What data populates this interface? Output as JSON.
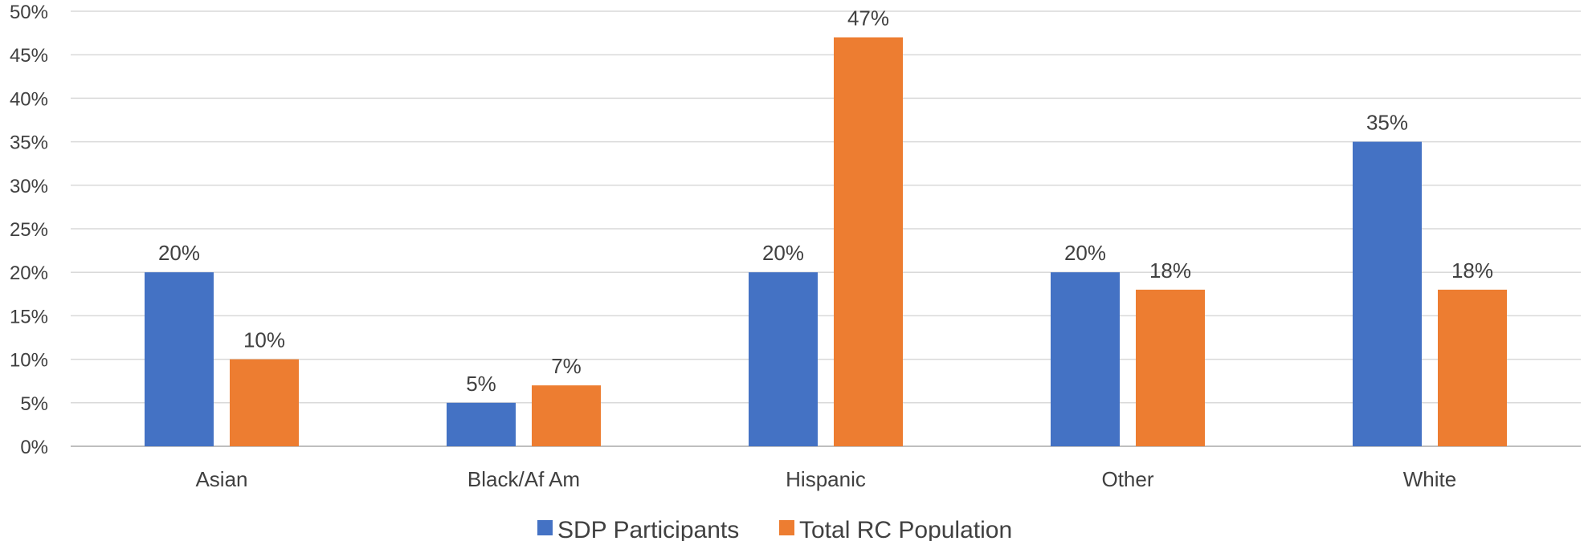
{
  "chart_data": {
    "type": "bar",
    "categories": [
      "Asian",
      "Black/Af Am",
      "Hispanic",
      "Other",
      "White"
    ],
    "series": [
      {
        "name": "SDP Participants",
        "color": "#4472C4",
        "values": [
          20,
          5,
          20,
          20,
          35
        ],
        "labels": [
          "20%",
          "5%",
          "20%",
          "20%",
          "35%"
        ]
      },
      {
        "name": "Total RC Population",
        "color": "#ED7D31",
        "values": [
          10,
          7,
          47,
          18,
          18
        ],
        "labels": [
          "10%",
          "7%",
          "47%",
          "18%",
          "18%"
        ]
      }
    ],
    "ylim": [
      0,
      50
    ],
    "yticks": [
      "0%",
      "5%",
      "10%",
      "15%",
      "20%",
      "25%",
      "30%",
      "35%",
      "40%",
      "45%",
      "50%"
    ],
    "grid": true,
    "legend_position": "bottom",
    "xlabel": "",
    "ylabel": ""
  }
}
